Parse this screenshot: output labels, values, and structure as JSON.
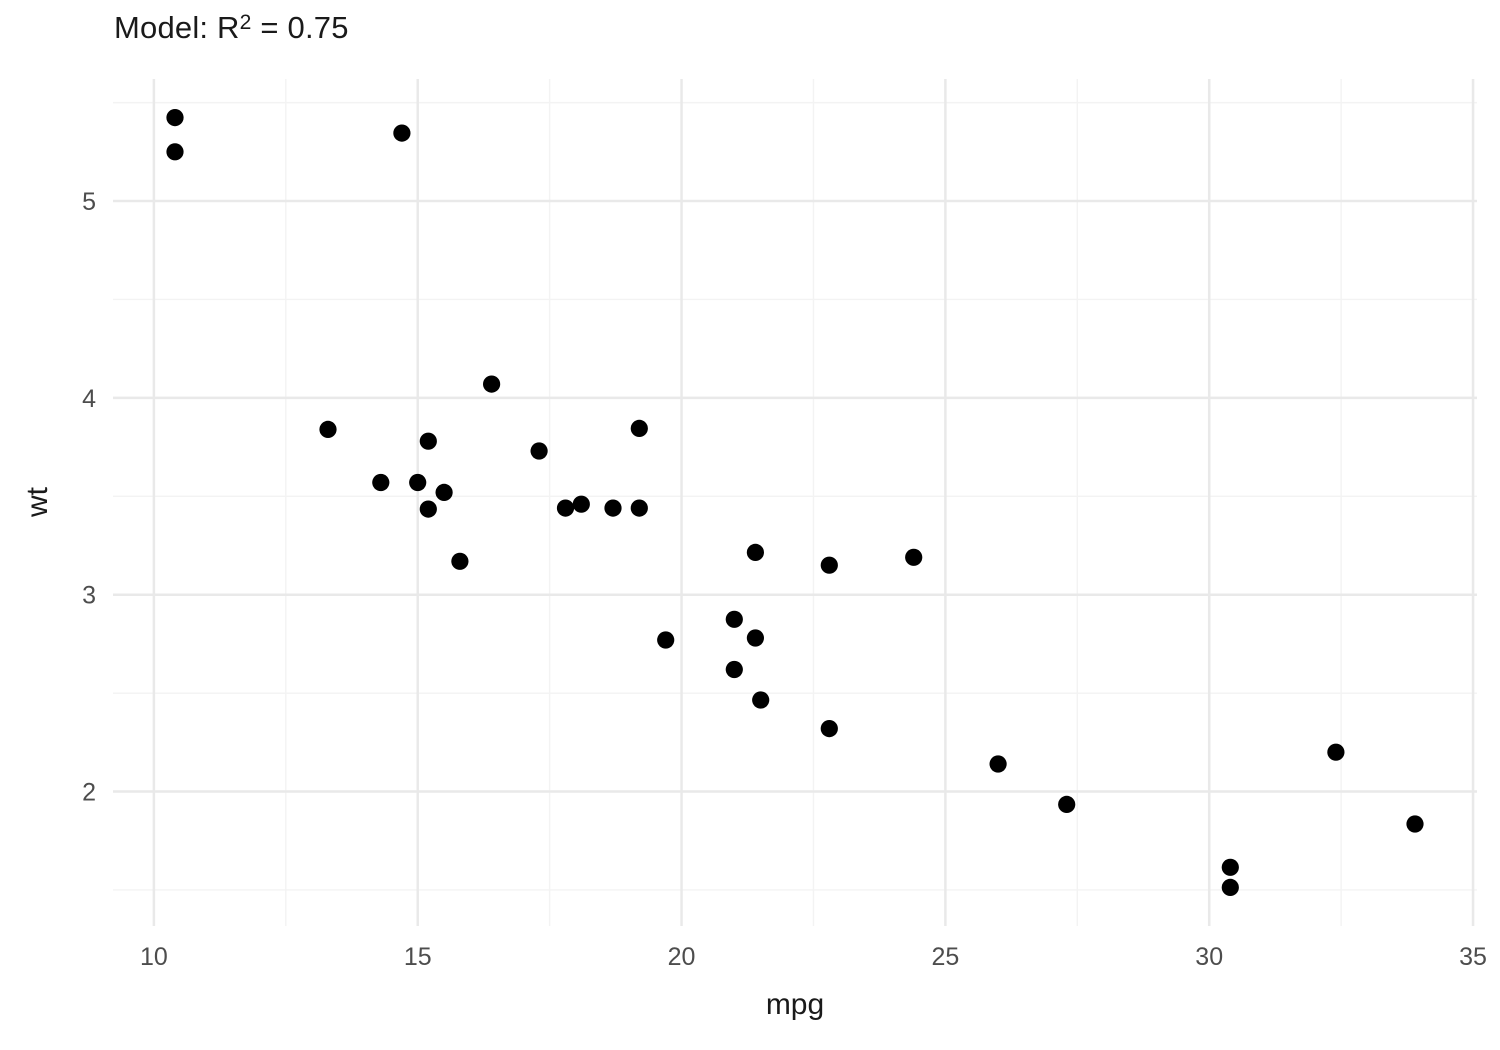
{
  "title": {
    "prefix": "Model: R",
    "superscript": "2",
    "suffix": " = 0.75"
  },
  "chart_data": {
    "type": "scatter",
    "title": "Model: R^2 = 0.75",
    "xlabel": "mpg",
    "ylabel": "wt",
    "xlim": [
      9.225,
      35.075
    ],
    "ylim": [
      1.317,
      5.62
    ],
    "x_ticks": [
      10,
      15,
      20,
      25,
      30,
      35
    ],
    "y_ticks": [
      2,
      3,
      4,
      5
    ],
    "x_minor_ticks": [
      12.5,
      17.5,
      22.5,
      27.5,
      32.5
    ],
    "y_minor_ticks": [
      1.5,
      2.5,
      3.5,
      4.5,
      5.5
    ],
    "grid": "on",
    "legend": "none",
    "points": [
      {
        "mpg": 21.0,
        "wt": 2.62
      },
      {
        "mpg": 21.0,
        "wt": 2.875
      },
      {
        "mpg": 22.8,
        "wt": 2.32
      },
      {
        "mpg": 21.4,
        "wt": 3.215
      },
      {
        "mpg": 18.7,
        "wt": 3.44
      },
      {
        "mpg": 18.1,
        "wt": 3.46
      },
      {
        "mpg": 14.3,
        "wt": 3.57
      },
      {
        "mpg": 24.4,
        "wt": 3.19
      },
      {
        "mpg": 22.8,
        "wt": 3.15
      },
      {
        "mpg": 19.2,
        "wt": 3.44
      },
      {
        "mpg": 17.8,
        "wt": 3.44
      },
      {
        "mpg": 16.4,
        "wt": 4.07
      },
      {
        "mpg": 17.3,
        "wt": 3.73
      },
      {
        "mpg": 15.2,
        "wt": 3.78
      },
      {
        "mpg": 10.4,
        "wt": 5.25
      },
      {
        "mpg": 10.4,
        "wt": 5.424
      },
      {
        "mpg": 14.7,
        "wt": 5.345
      },
      {
        "mpg": 32.4,
        "wt": 2.2
      },
      {
        "mpg": 30.4,
        "wt": 1.615
      },
      {
        "mpg": 33.9,
        "wt": 1.835
      },
      {
        "mpg": 21.5,
        "wt": 2.465
      },
      {
        "mpg": 15.5,
        "wt": 3.52
      },
      {
        "mpg": 15.2,
        "wt": 3.435
      },
      {
        "mpg": 13.3,
        "wt": 3.84
      },
      {
        "mpg": 19.2,
        "wt": 3.845
      },
      {
        "mpg": 27.3,
        "wt": 1.935
      },
      {
        "mpg": 26.0,
        "wt": 2.14
      },
      {
        "mpg": 30.4,
        "wt": 1.513
      },
      {
        "mpg": 15.8,
        "wt": 3.17
      },
      {
        "mpg": 19.7,
        "wt": 2.77
      },
      {
        "mpg": 15.0,
        "wt": 3.57
      },
      {
        "mpg": 21.4,
        "wt": 2.78
      }
    ]
  },
  "style": {
    "point_color": "#000000",
    "major_grid_color": "#e9e9e9",
    "minor_grid_color": "#f3f3f3",
    "tick_label_color": "#4d4d4d",
    "title_color": "#1a1a1a",
    "background_color": "#ffffff"
  }
}
